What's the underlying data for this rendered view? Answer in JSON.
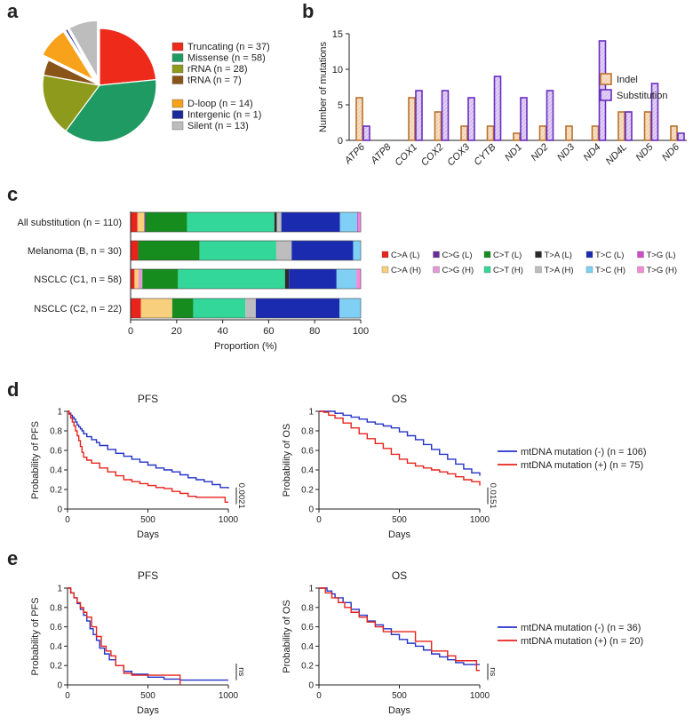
{
  "panels": {
    "a": "a",
    "b": "b",
    "c": "c",
    "d": "d",
    "e": "e"
  },
  "colors": {
    "truncating": "#ee2a1b",
    "missense": "#1e9a62",
    "rrna": "#8e9a1b",
    "trna": "#8a5418",
    "dloop": "#f7a21a",
    "intergenic": "#1a2a9a",
    "silent": "#bdbdbd",
    "indel_fill": "#f8dfc4",
    "indel_stroke": "#b8732e",
    "subst_fill": "#e3d2f6",
    "subst_stroke": "#6a2dbf",
    "km_neg": "#2433c8",
    "km_pos": "#e8231c"
  },
  "chart_data": [
    {
      "id": "a",
      "type": "pie",
      "title": "",
      "slices": [
        {
          "label": "Truncating (n = 37)",
          "value": 37,
          "key": "truncating",
          "exploded": false
        },
        {
          "label": "Missense (n = 58)",
          "value": 58,
          "key": "missense",
          "exploded": false
        },
        {
          "label": "rRNA (n = 28)",
          "value": 28,
          "key": "rrna",
          "exploded": false
        },
        {
          "label": "tRNA (n = 7)",
          "value": 7,
          "key": "trna",
          "exploded": false
        },
        {
          "label": "D-loop (n = 14)",
          "value": 14,
          "key": "dloop",
          "exploded": true
        },
        {
          "label": "Intergenic (n = 1)",
          "value": 1,
          "key": "intergenic",
          "exploded": true
        },
        {
          "label": "Silent (n = 13)",
          "value": 13,
          "key": "silent",
          "exploded": true
        }
      ],
      "legend_groups": [
        [
          0,
          1,
          2,
          3
        ],
        [
          4,
          5,
          6
        ]
      ]
    },
    {
      "id": "b",
      "type": "bar",
      "title": "",
      "ylabel": "Number of mutations",
      "xlabel": "",
      "ylim": [
        0,
        15
      ],
      "yticks": [
        0,
        5,
        10,
        15
      ],
      "categories": [
        "ATP6",
        "ATP8",
        "COX1",
        "COX2",
        "COX3",
        "CYTB",
        "ND1",
        "ND2",
        "ND3",
        "ND4",
        "ND4L",
        "ND5",
        "ND6"
      ],
      "series": [
        {
          "name": "Indel",
          "values": [
            6,
            0,
            6,
            4,
            2,
            2,
            1,
            2,
            2,
            2,
            4,
            4,
            2
          ]
        },
        {
          "name": "Substitution",
          "values": [
            2,
            0,
            7,
            7,
            6,
            9,
            6,
            7,
            0,
            14,
            4,
            8,
            1
          ]
        }
      ]
    },
    {
      "id": "c",
      "type": "bar",
      "orientation": "horizontal",
      "stacked": true,
      "xlabel": "Proportion (%)",
      "xlim": [
        0,
        100
      ],
      "xticks": [
        0,
        20,
        40,
        60,
        80,
        100
      ],
      "rows": [
        "All substitution  (n = 110)",
        "Melanoma (B, n = 30)",
        "NSCLC (C1, n = 58)",
        "NSCLC (C2, n = 22)"
      ],
      "segment_order": [
        "C>A (L)",
        "C>A (H)",
        "C>G (L)",
        "C>G (H)",
        "C>T (L)",
        "C>T (H)",
        "T>A (L)",
        "T>A (H)",
        "T>C (L)",
        "T>C (H)",
        "T>G (L)",
        "T>G (H)"
      ],
      "segment_colors": [
        "#e8231c",
        "#f8cf7c",
        "#6b2d9a",
        "#e29ad6",
        "#168c1e",
        "#33d79a",
        "#2a2a2a",
        "#bdbdbd",
        "#1a2bb0",
        "#7fd0f4",
        "#d14cc8",
        "#f28cd8"
      ],
      "values": [
        [
          3,
          3,
          0.5,
          0,
          18,
          38,
          1,
          2,
          25.5,
          7.5,
          0.5,
          1
        ],
        [
          3.3,
          0,
          0,
          0,
          26.7,
          33.3,
          0,
          6.7,
          26.7,
          3.3,
          0,
          0
        ],
        [
          1.7,
          1.7,
          0,
          1.7,
          15.5,
          46.5,
          1.7,
          0,
          20.7,
          8.6,
          0,
          1.9
        ],
        [
          4.5,
          13.6,
          0,
          0,
          9.1,
          22.7,
          0,
          4.5,
          36.4,
          9.2,
          0,
          0
        ]
      ],
      "legend": [
        "C>A (L)",
        "C>G (L)",
        "C>T (L)",
        "T>A (L)",
        "T>C (L)",
        "T>G (L)",
        "C>A (H)",
        "C>G (H)",
        "C>T (H)",
        "T>A (H)",
        "T>C (H)",
        "T>G (H)"
      ]
    },
    {
      "id": "d1",
      "type": "line",
      "subtype": "kaplan-meier",
      "title": "PFS",
      "xlabel": "Days",
      "ylabel": "Probability of PFS",
      "xlim": [
        0,
        1000
      ],
      "ylim": [
        0,
        1.0
      ],
      "xticks": [
        0,
        500,
        1000
      ],
      "yticks": [
        0,
        0.2,
        0.4,
        0.6,
        0.8,
        1.0
      ],
      "pvalue": "0.0021",
      "series": [
        {
          "name": "mtDNA mutation (-)",
          "x": [
            0,
            10,
            20,
            30,
            40,
            50,
            60,
            70,
            80,
            90,
            100,
            120,
            150,
            180,
            200,
            250,
            300,
            350,
            400,
            450,
            500,
            550,
            600,
            650,
            700,
            750,
            800,
            850,
            900,
            950,
            1000
          ],
          "y": [
            1.0,
            0.98,
            0.96,
            0.94,
            0.92,
            0.89,
            0.86,
            0.84,
            0.82,
            0.8,
            0.77,
            0.74,
            0.71,
            0.68,
            0.65,
            0.61,
            0.57,
            0.54,
            0.51,
            0.48,
            0.45,
            0.42,
            0.4,
            0.38,
            0.35,
            0.32,
            0.3,
            0.28,
            0.25,
            0.22,
            0.21
          ]
        },
        {
          "name": "mtDNA mutation (+)",
          "x": [
            0,
            10,
            20,
            30,
            40,
            50,
            60,
            70,
            80,
            90,
            100,
            120,
            150,
            200,
            250,
            300,
            350,
            400,
            450,
            500,
            550,
            600,
            650,
            700,
            750,
            800,
            850,
            900,
            950,
            980,
            1000
          ],
          "y": [
            1.0,
            0.97,
            0.93,
            0.89,
            0.85,
            0.8,
            0.75,
            0.7,
            0.64,
            0.58,
            0.53,
            0.5,
            0.47,
            0.42,
            0.38,
            0.34,
            0.3,
            0.28,
            0.26,
            0.24,
            0.22,
            0.21,
            0.18,
            0.16,
            0.13,
            0.12,
            0.12,
            0.12,
            0.12,
            0.07,
            0.07
          ]
        }
      ]
    },
    {
      "id": "d2",
      "type": "line",
      "subtype": "kaplan-meier",
      "title": "OS",
      "xlabel": "Days",
      "ylabel": "Probability of OS",
      "xlim": [
        0,
        1000
      ],
      "ylim": [
        0,
        1.0
      ],
      "xticks": [
        0,
        500,
        1000
      ],
      "yticks": [
        0,
        0.2,
        0.4,
        0.6,
        0.8,
        1.0
      ],
      "pvalue": "0.0151",
      "legend": [
        "mtDNA mutation (-) (n = 106)",
        "mtDNA mutation (+) (n = 75)"
      ],
      "series": [
        {
          "name": "mtDNA mutation (-)",
          "x": [
            0,
            50,
            100,
            150,
            200,
            250,
            300,
            350,
            400,
            450,
            500,
            550,
            600,
            650,
            700,
            750,
            800,
            850,
            900,
            950,
            1000
          ],
          "y": [
            1.0,
            1.0,
            0.98,
            0.96,
            0.94,
            0.92,
            0.89,
            0.87,
            0.85,
            0.83,
            0.79,
            0.75,
            0.71,
            0.66,
            0.61,
            0.56,
            0.51,
            0.46,
            0.41,
            0.37,
            0.34
          ]
        },
        {
          "name": "mtDNA mutation (+)",
          "x": [
            0,
            30,
            60,
            100,
            150,
            200,
            250,
            300,
            350,
            400,
            450,
            500,
            550,
            600,
            650,
            700,
            750,
            800,
            850,
            900,
            950,
            1000
          ],
          "y": [
            1.0,
            0.99,
            0.96,
            0.93,
            0.88,
            0.83,
            0.77,
            0.72,
            0.67,
            0.62,
            0.56,
            0.51,
            0.47,
            0.44,
            0.42,
            0.4,
            0.38,
            0.36,
            0.33,
            0.3,
            0.28,
            0.24
          ]
        }
      ]
    },
    {
      "id": "e1",
      "type": "line",
      "subtype": "kaplan-meier",
      "title": "PFS",
      "xlabel": "Days",
      "ylabel": "Probability of PFS",
      "xlim": [
        0,
        1000
      ],
      "ylim": [
        0,
        1.0
      ],
      "xticks": [
        0,
        500,
        1000
      ],
      "yticks": [
        0,
        0.2,
        0.4,
        0.6,
        0.8,
        1.0
      ],
      "pvalue": "ns",
      "series": [
        {
          "name": "mtDNA mutation (-)",
          "x": [
            0,
            20,
            40,
            60,
            80,
            100,
            120,
            140,
            160,
            180,
            200,
            230,
            260,
            300,
            350,
            400,
            500,
            600,
            700,
            800,
            1000
          ],
          "y": [
            1.0,
            0.95,
            0.9,
            0.84,
            0.78,
            0.72,
            0.66,
            0.58,
            0.52,
            0.46,
            0.38,
            0.32,
            0.26,
            0.2,
            0.14,
            0.11,
            0.08,
            0.06,
            0.05,
            0.05,
            0.05
          ]
        },
        {
          "name": "mtDNA mutation (+)",
          "x": [
            0,
            20,
            40,
            60,
            80,
            100,
            120,
            150,
            180,
            210,
            240,
            270,
            300,
            350,
            400,
            500,
            600,
            680,
            700
          ],
          "y": [
            1.0,
            0.95,
            0.9,
            0.85,
            0.8,
            0.75,
            0.7,
            0.6,
            0.5,
            0.4,
            0.35,
            0.3,
            0.2,
            0.12,
            0.1,
            0.1,
            0.1,
            0.1,
            0.0
          ]
        }
      ]
    },
    {
      "id": "e2",
      "type": "line",
      "subtype": "kaplan-meier",
      "title": "OS",
      "xlabel": "Days",
      "ylabel": "Probability of OS",
      "xlim": [
        0,
        1000
      ],
      "ylim": [
        0,
        1.0
      ],
      "xticks": [
        0,
        500,
        1000
      ],
      "yticks": [
        0,
        0.2,
        0.4,
        0.6,
        0.8,
        1.0
      ],
      "pvalue": "ns",
      "legend": [
        "mtDNA mutation (-) (n = 36)",
        "mtDNA mutation (+) (n = 20)"
      ],
      "series": [
        {
          "name": "mtDNA mutation (-)",
          "x": [
            0,
            50,
            80,
            100,
            150,
            200,
            250,
            300,
            350,
            400,
            450,
            500,
            550,
            600,
            650,
            700,
            750,
            800,
            850,
            900,
            950,
            1000
          ],
          "y": [
            1.0,
            0.97,
            0.94,
            0.9,
            0.85,
            0.78,
            0.72,
            0.66,
            0.62,
            0.58,
            0.52,
            0.47,
            0.43,
            0.4,
            0.36,
            0.32,
            0.29,
            0.26,
            0.23,
            0.21,
            0.21,
            0.21
          ]
        },
        {
          "name": "mtDNA mutation (+)",
          "x": [
            0,
            40,
            80,
            120,
            160,
            200,
            250,
            300,
            350,
            400,
            500,
            600,
            700,
            800,
            850,
            900,
            950,
            980,
            1000
          ],
          "y": [
            1.0,
            0.95,
            0.9,
            0.85,
            0.8,
            0.75,
            0.7,
            0.65,
            0.6,
            0.55,
            0.55,
            0.45,
            0.35,
            0.3,
            0.25,
            0.25,
            0.25,
            0.15,
            0.15
          ]
        }
      ]
    }
  ]
}
